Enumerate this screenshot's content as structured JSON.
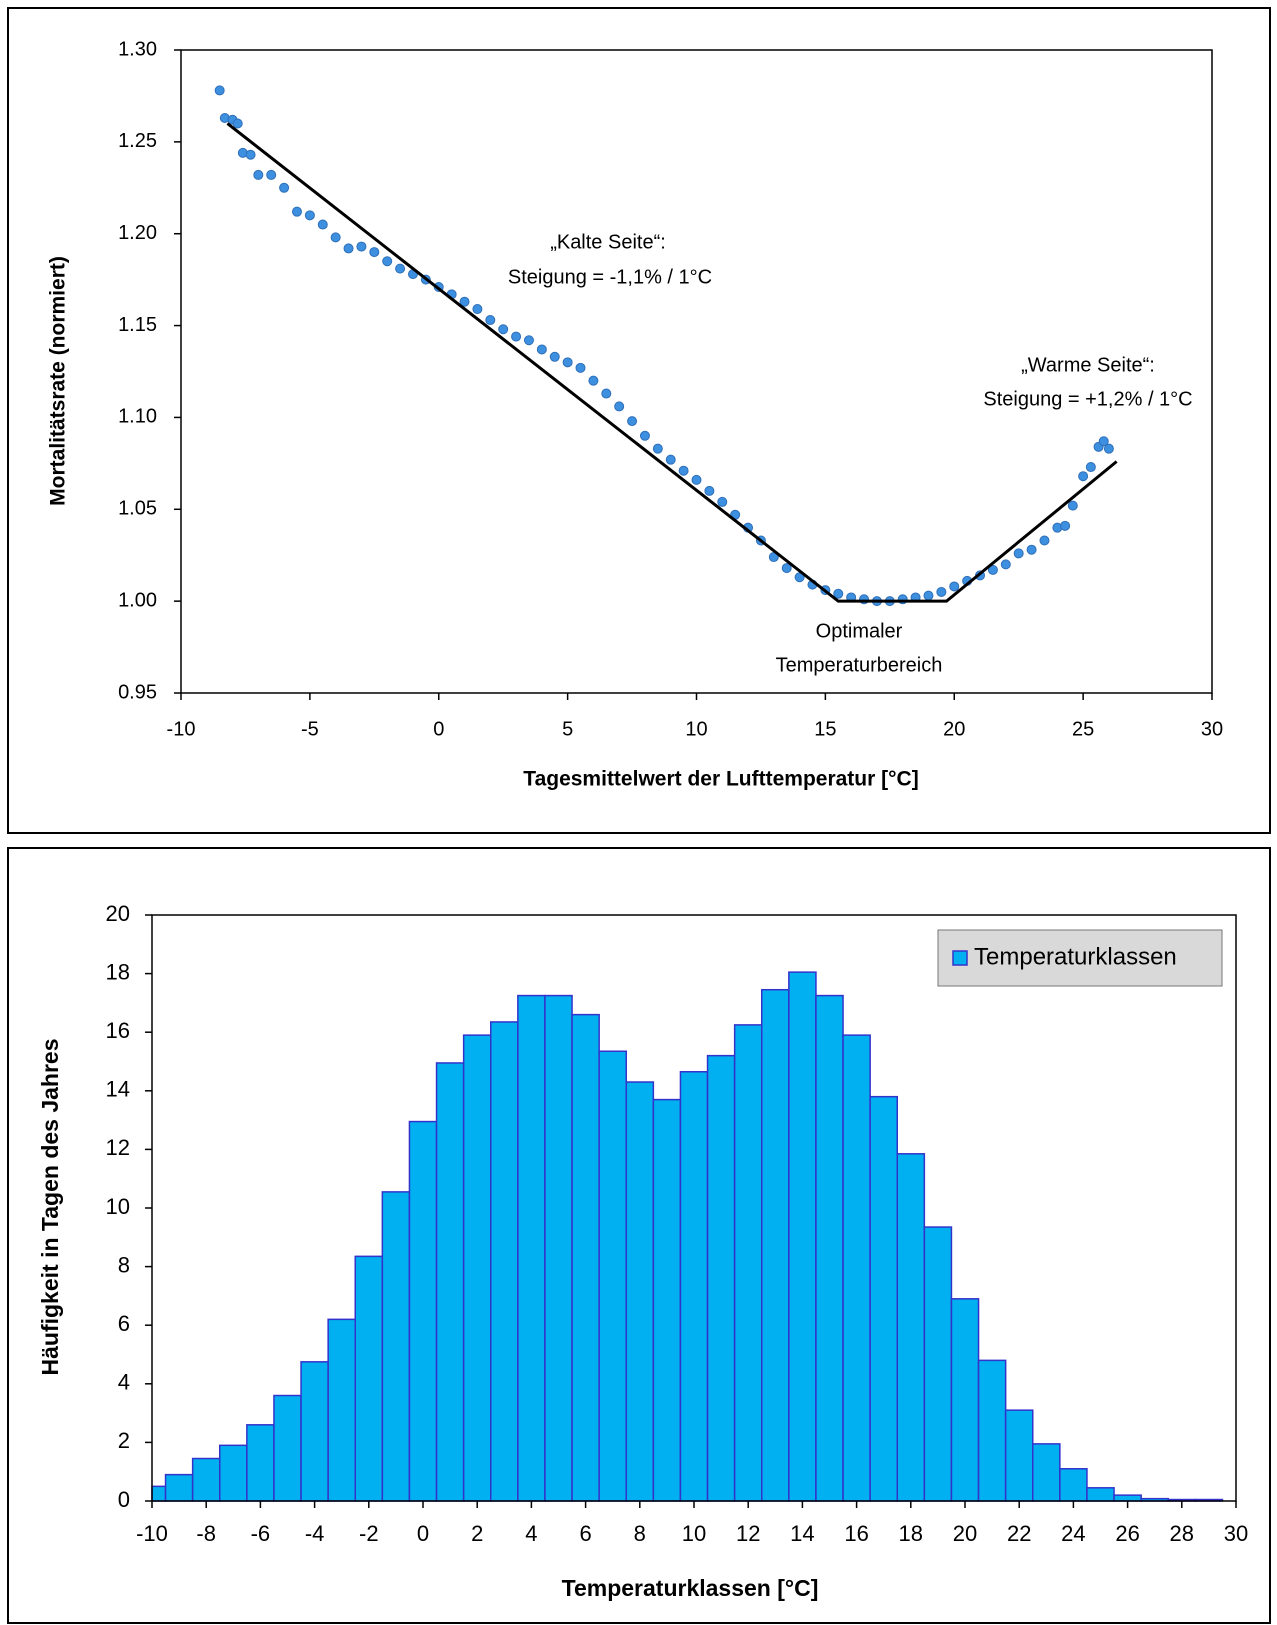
{
  "chart_data": [
    {
      "type": "scatter",
      "xlabel": "Tagesmittelwert der Lufttemperatur [°C]",
      "ylabel": "Mortalitätsrate (normiert)",
      "annotations": [
        "„Kalte Seite“:",
        "Steigung = -1,1% / 1°C",
        "„Warme Seite“:",
        "Steigung = +1,2% / 1°C",
        "Optimaler",
        "Temperaturbereich"
      ],
      "xlim": [
        -10,
        30
      ],
      "xticks": [
        -10,
        -5,
        0,
        5,
        10,
        15,
        20,
        25,
        30
      ],
      "ylim": [
        0.95,
        1.3
      ],
      "yticks": [
        {
          "value": 0.95,
          "label": "0.95"
        },
        {
          "value": 1.0,
          "label": "1.00"
        },
        1.05,
        {
          "value": 1.1,
          "label": "1.10"
        },
        1.15,
        {
          "value": 1.2,
          "label": "1.20"
        },
        1.25,
        {
          "value": 1.3,
          "label": "1.30"
        }
      ],
      "grid": false,
      "series": [
        {
          "color": "#3d8fe0",
          "x": [
            -8.5,
            -8.3,
            -8,
            -7.8,
            -7.6,
            -7.3,
            -7,
            -6.5,
            -6,
            -5.5,
            -5,
            -4.5,
            -4,
            -3.5,
            -3,
            -2.5,
            -2,
            -1.5,
            -1,
            -0.5,
            0,
            0.5,
            1,
            1.5,
            2,
            2.5,
            3,
            3.5,
            4,
            4.5,
            5,
            5.5,
            6,
            6.5,
            7,
            7.5,
            8,
            8.5,
            9,
            9.5,
            10,
            10.5,
            11,
            11.5,
            12,
            12.5,
            13,
            13.5,
            14,
            14.5,
            15,
            15.5,
            16,
            16.5,
            17,
            17.5,
            18,
            18.5,
            19,
            19.5,
            20,
            20.5,
            21,
            21.5,
            22,
            22.5,
            23,
            23.5,
            24,
            24.3,
            24.6,
            25,
            25.3,
            25.6,
            25.8,
            26
          ],
          "values": [
            1.278,
            1.263,
            1.262,
            1.26,
            1.244,
            1.243,
            1.232,
            1.232,
            1.225,
            1.212,
            1.21,
            1.205,
            1.198,
            1.192,
            1.193,
            1.19,
            1.185,
            1.181,
            1.178,
            1.175,
            1.171,
            1.167,
            1.163,
            1.159,
            1.153,
            1.148,
            1.144,
            1.142,
            1.137,
            1.133,
            1.13,
            1.127,
            1.12,
            1.113,
            1.106,
            1.098,
            1.09,
            1.083,
            1.077,
            1.071,
            1.066,
            1.06,
            1.054,
            1.047,
            1.04,
            1.033,
            1.024,
            1.018,
            1.013,
            1.009,
            1.006,
            1.004,
            1.002,
            1.001,
            1.0,
            1.0,
            1.001,
            1.002,
            1.003,
            1.005,
            1.008,
            1.011,
            1.014,
            1.017,
            1.02,
            1.026,
            1.028,
            1.033,
            1.04,
            1.041,
            1.052,
            1.068,
            1.073,
            1.084,
            1.087,
            1.083
          ]
        },
        {
          "type": "line",
          "color": "#000000",
          "x": [
            -8.2,
            15.5,
            19.7,
            26.3
          ],
          "values": [
            1.26,
            1.0,
            1.0,
            1.076
          ]
        }
      ]
    },
    {
      "type": "histogram",
      "xlabel": "Temperaturklassen  [°C]",
      "ylabel": "Häufigkeit  in Tagen des Jahres",
      "xlim": [
        -10,
        30
      ],
      "xticks": [
        -10,
        -8,
        -6,
        -4,
        -2,
        0,
        2,
        4,
        6,
        8,
        10,
        12,
        14,
        16,
        18,
        20,
        22,
        24,
        26,
        28,
        30
      ],
      "ylim": [
        0,
        20
      ],
      "yticks": [
        0,
        2,
        4,
        6,
        8,
        10,
        12,
        14,
        16,
        18,
        20
      ],
      "grid": false,
      "legend": "upper right",
      "bins": [
        -10,
        -9.5,
        -8.5,
        -7.5,
        -6.5,
        -5.5,
        -4.5,
        -3.5,
        -2.5,
        -1.5,
        -0.5,
        0.5,
        1.5,
        2.5,
        3.5,
        4.5,
        5.5,
        6.5,
        7.5,
        8.5,
        9.5,
        10.5,
        11.5,
        12.5,
        13.5,
        14.5,
        15.5,
        16.5,
        17.5,
        18.5,
        19.5,
        20.5,
        21.5,
        22.5,
        23.5,
        24.5,
        25.5,
        26.5,
        27.5,
        28.5,
        29.5
      ],
      "series": [
        {
          "name": "Temperaturklassen",
          "color": "#00b0f0",
          "edgecolor": "#3333cc",
          "values": [
            0.5,
            0.9,
            1.45,
            1.9,
            2.6,
            3.6,
            4.75,
            6.2,
            8.35,
            10.55,
            12.95,
            14.95,
            15.9,
            16.35,
            17.25,
            17.25,
            16.6,
            15.35,
            14.3,
            13.7,
            14.65,
            15.2,
            16.25,
            17.45,
            18.05,
            17.25,
            15.9,
            13.8,
            11.85,
            9.35,
            6.9,
            4.8,
            3.1,
            1.95,
            1.1,
            0.45,
            0.2,
            0.08,
            0.05,
            0.05
          ]
        }
      ]
    }
  ]
}
